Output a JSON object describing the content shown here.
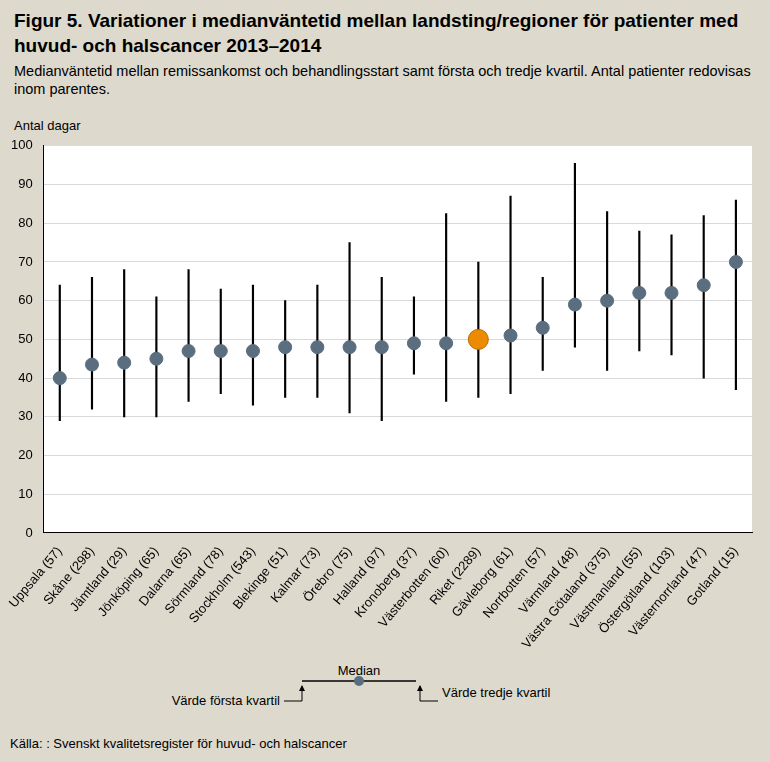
{
  "chart_data": {
    "type": "dot_range",
    "title": "Figur 5. Variationer i medianväntetid mellan landsting/regioner för patienter med huvud- och halscancer 2013–2014",
    "subtitle": "Medianväntetid mellan remissankomst och behandlingsstart samt första och tredje kvartil. Antal patienter redovisas inom  parentes.",
    "y_label": "Antal dagar",
    "source": "Källa: : Svenskt kvalitetsregister för huvud- och halscancer",
    "categories": [
      "Uppsala (57)",
      "Skåne (298)",
      "Jämtland (29)",
      "Jönköping (65)",
      "Dalarna (65)",
      "Sörmland (78)",
      "Stockholm (543)",
      "Blekinge (51)",
      "Kalmar (73)",
      "Örebro (75)",
      "Halland (97)",
      "Kronoberg (37)",
      "Västerbotten (60)",
      "Riket (2289)",
      "Gävleborg (61)",
      "Norrbotten (57)",
      "Värmland (48)",
      "Västra Götaland (375)",
      "Västmanland (55)",
      "Östergötland (103)",
      "Västernorrland (47)",
      "Gotland (15)"
    ],
    "series": [
      {
        "name": "Median",
        "color": "#5a6e7f",
        "marker": "circle",
        "values": [
          40,
          43.5,
          44,
          45,
          47,
          47,
          47,
          48,
          48,
          48,
          48,
          49,
          49,
          50,
          51,
          53,
          59,
          60,
          62,
          62,
          64,
          70
        ],
        "colors": [
          "#5a6e7f",
          "#5a6e7f",
          "#5a6e7f",
          "#5a6e7f",
          "#5a6e7f",
          "#5a6e7f",
          "#5a6e7f",
          "#5a6e7f",
          "#5a6e7f",
          "#5a6e7f",
          "#5a6e7f",
          "#5a6e7f",
          "#5a6e7f",
          "#ed8b00",
          "#5a6e7f",
          "#5a6e7f",
          "#5a6e7f",
          "#5a6e7f",
          "#5a6e7f",
          "#5a6e7f",
          "#5a6e7f",
          "#5a6e7f"
        ],
        "q1": [
          29,
          32,
          30,
          30,
          34,
          36,
          33,
          35,
          35,
          31,
          29,
          41,
          34,
          35,
          36,
          42,
          48,
          42,
          47,
          46,
          40,
          37
        ],
        "q3": [
          64,
          66,
          68,
          61,
          68,
          63,
          64,
          60,
          64,
          75,
          66,
          61,
          82.5,
          70,
          87,
          66,
          95.5,
          83,
          78,
          77,
          82,
          86
        ]
      }
    ],
    "annotations": {
      "median": "Median",
      "q1": "Värde första kvartil",
      "q3": "Värde tredje kvartil"
    },
    "ylim": [
      0,
      100
    ],
    "yticks": [
      0,
      10,
      20,
      30,
      40,
      50,
      60,
      70,
      80,
      90,
      100
    ],
    "grid": true
  }
}
